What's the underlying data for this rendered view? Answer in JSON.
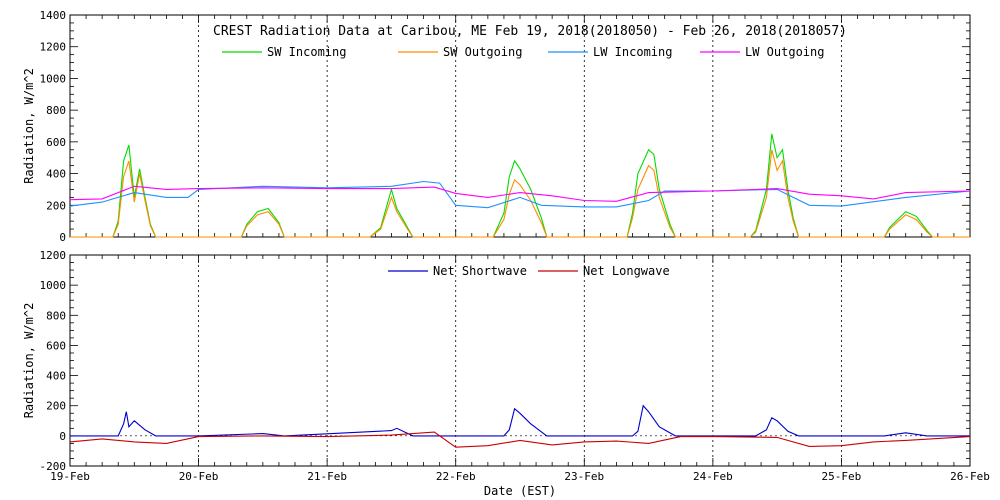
{
  "chart_data": [
    {
      "type": "line",
      "title": "CREST Radiation Data at Caribou, ME   Feb 19, 2018(2018050) - Feb 26, 2018(2018057)",
      "xlabel": "",
      "ylabel": "Radiation, W/m^2",
      "xlim": [
        "2018-02-19 00:00",
        "2018-02-26 00:00"
      ],
      "ylim": [
        0,
        1400
      ],
      "yticks": [
        0,
        200,
        400,
        600,
        800,
        1000,
        1200,
        1400
      ],
      "grid": true,
      "legend_position": "top",
      "series": [
        {
          "name": "SW Incoming",
          "color": "#00dd00",
          "x": [
            "2018-02-19 00:00",
            "2018-02-19 08:00",
            "2018-02-19 09:00",
            "2018-02-19 10:00",
            "2018-02-19 11:00",
            "2018-02-19 12:00",
            "2018-02-19 13:00",
            "2018-02-19 14:00",
            "2018-02-19 15:00",
            "2018-02-19 16:00",
            "2018-02-20 08:00",
            "2018-02-20 09:00",
            "2018-02-20 11:00",
            "2018-02-20 13:00",
            "2018-02-20 15:00",
            "2018-02-20 16:00",
            "2018-02-21 08:00",
            "2018-02-21 10:00",
            "2018-02-21 12:00",
            "2018-02-21 13:00",
            "2018-02-21 15:00",
            "2018-02-21 16:00",
            "2018-02-22 07:00",
            "2018-02-22 09:00",
            "2018-02-22 10:00",
            "2018-02-22 11:00",
            "2018-02-22 12:00",
            "2018-02-22 14:00",
            "2018-02-22 16:00",
            "2018-02-22 17:00",
            "2018-02-23 08:00",
            "2018-02-23 09:00",
            "2018-02-23 10:00",
            "2018-02-23 12:00",
            "2018-02-23 13:00",
            "2018-02-23 14:00",
            "2018-02-23 16:00",
            "2018-02-23 17:00",
            "2018-02-24 07:00",
            "2018-02-24 08:00",
            "2018-02-24 10:00",
            "2018-02-24 11:00",
            "2018-02-24 12:00",
            "2018-02-24 13:00",
            "2018-02-24 14:00",
            "2018-02-24 15:00",
            "2018-02-24 16:00",
            "2018-02-25 08:00",
            "2018-02-25 09:00",
            "2018-02-25 12:00",
            "2018-02-25 14:00",
            "2018-02-25 16:00",
            "2018-02-25 17:00",
            "2018-02-26 00:00"
          ],
          "values": [
            0,
            0,
            100,
            480,
            580,
            250,
            430,
            250,
            80,
            0,
            0,
            80,
            160,
            180,
            90,
            0,
            0,
            60,
            300,
            180,
            60,
            0,
            0,
            150,
            380,
            480,
            430,
            300,
            120,
            0,
            0,
            150,
            400,
            550,
            520,
            300,
            80,
            0,
            0,
            40,
            300,
            650,
            500,
            550,
            300,
            120,
            0,
            0,
            60,
            160,
            130,
            40,
            0,
            0
          ]
        },
        {
          "name": "SW Outgoing",
          "color": "#ff8c00",
          "x": [
            "2018-02-19 00:00",
            "2018-02-19 08:00",
            "2018-02-19 09:00",
            "2018-02-19 10:00",
            "2018-02-19 11:00",
            "2018-02-19 12:00",
            "2018-02-19 13:00",
            "2018-02-19 14:00",
            "2018-02-19 15:00",
            "2018-02-19 16:00",
            "2018-02-20 08:00",
            "2018-02-20 09:00",
            "2018-02-20 11:00",
            "2018-02-20 13:00",
            "2018-02-20 15:00",
            "2018-02-20 16:00",
            "2018-02-21 08:00",
            "2018-02-21 10:00",
            "2018-02-21 12:00",
            "2018-02-21 13:00",
            "2018-02-21 15:00",
            "2018-02-21 16:00",
            "2018-02-22 07:00",
            "2018-02-22 09:00",
            "2018-02-22 10:00",
            "2018-02-22 11:00",
            "2018-02-22 12:00",
            "2018-02-22 14:00",
            "2018-02-22 16:00",
            "2018-02-22 17:00",
            "2018-02-23 08:00",
            "2018-02-23 09:00",
            "2018-02-23 10:00",
            "2018-02-23 12:00",
            "2018-02-23 13:00",
            "2018-02-23 14:00",
            "2018-02-23 16:00",
            "2018-02-23 17:00",
            "2018-02-24 07:00",
            "2018-02-24 08:00",
            "2018-02-24 10:00",
            "2018-02-24 11:00",
            "2018-02-24 12:00",
            "2018-02-24 13:00",
            "2018-02-24 14:00",
            "2018-02-24 15:00",
            "2018-02-24 16:00",
            "2018-02-25 08:00",
            "2018-02-25 09:00",
            "2018-02-25 12:00",
            "2018-02-25 14:00",
            "2018-02-25 16:00",
            "2018-02-25 17:00",
            "2018-02-26 00:00"
          ],
          "values": [
            0,
            0,
            80,
            380,
            480,
            220,
            400,
            230,
            70,
            0,
            0,
            70,
            140,
            160,
            80,
            0,
            0,
            50,
            250,
            160,
            50,
            0,
            0,
            110,
            270,
            360,
            330,
            230,
            90,
            0,
            0,
            120,
            300,
            450,
            420,
            250,
            60,
            0,
            0,
            30,
            250,
            550,
            420,
            480,
            250,
            100,
            0,
            0,
            50,
            140,
            110,
            30,
            0,
            0
          ]
        },
        {
          "name": "LW Incoming",
          "color": "#1e90ff",
          "x": [
            "2018-02-19 00:00",
            "2018-02-19 06:00",
            "2018-02-19 12:00",
            "2018-02-19 18:00",
            "2018-02-19 22:00",
            "2018-02-20 00:00",
            "2018-02-20 12:00",
            "2018-02-21 00:00",
            "2018-02-21 12:00",
            "2018-02-21 18:00",
            "2018-02-21 21:00",
            "2018-02-22 00:00",
            "2018-02-22 06:00",
            "2018-02-22 12:00",
            "2018-02-22 16:00",
            "2018-02-23 00:00",
            "2018-02-23 06:00",
            "2018-02-23 12:00",
            "2018-02-23 15:00",
            "2018-02-24 00:00",
            "2018-02-24 12:00",
            "2018-02-24 18:00",
            "2018-02-25 00:00",
            "2018-02-25 12:00",
            "2018-02-26 00:00"
          ],
          "values": [
            195,
            220,
            280,
            250,
            250,
            300,
            320,
            310,
            320,
            350,
            340,
            200,
            185,
            250,
            200,
            190,
            190,
            230,
            290,
            290,
            300,
            200,
            195,
            250,
            290
          ]
        },
        {
          "name": "LW Outgoing",
          "color": "#ff00ff",
          "x": [
            "2018-02-19 00:00",
            "2018-02-19 06:00",
            "2018-02-19 12:00",
            "2018-02-19 18:00",
            "2018-02-20 00:00",
            "2018-02-20 12:00",
            "2018-02-21 00:00",
            "2018-02-21 12:00",
            "2018-02-21 20:00",
            "2018-02-22 00:00",
            "2018-02-22 06:00",
            "2018-02-22 12:00",
            "2018-02-22 18:00",
            "2018-02-23 00:00",
            "2018-02-23 06:00",
            "2018-02-23 12:00",
            "2018-02-23 18:00",
            "2018-02-24 00:00",
            "2018-02-24 12:00",
            "2018-02-24 18:00",
            "2018-02-25 00:00",
            "2018-02-25 06:00",
            "2018-02-25 12:00",
            "2018-02-26 00:00"
          ],
          "values": [
            235,
            240,
            320,
            300,
            305,
            310,
            305,
            305,
            315,
            275,
            250,
            280,
            260,
            230,
            225,
            280,
            285,
            290,
            305,
            270,
            260,
            240,
            280,
            290
          ]
        }
      ]
    },
    {
      "type": "line",
      "title": "",
      "xlabel": "Date (EST)",
      "ylabel": "Radiation, W/m^2",
      "xlim": [
        "2018-02-19 00:00",
        "2018-02-26 00:00"
      ],
      "ylim": [
        -200,
        1200
      ],
      "yticks": [
        -200,
        0,
        200,
        400,
        600,
        800,
        1000,
        1200
      ],
      "xticks": [
        "2018-02-19",
        "2018-02-20",
        "2018-02-21",
        "2018-02-22",
        "2018-02-23",
        "2018-02-24",
        "2018-02-25",
        "2018-02-26"
      ],
      "xticklabels": [
        "19-Feb",
        "20-Feb",
        "21-Feb",
        "22-Feb",
        "23-Feb",
        "24-Feb",
        "25-Feb",
        "26-Feb"
      ],
      "grid": true,
      "legend_position": "top",
      "series": [
        {
          "name": "Net Shortwave",
          "color": "#0000cc",
          "x": [
            "2018-02-19 00:00",
            "2018-02-19 09:00",
            "2018-02-19 10:00",
            "2018-02-19 10:30",
            "2018-02-19 11:00",
            "2018-02-19 12:00",
            "2018-02-19 14:00",
            "2018-02-19 16:00",
            "2018-02-20 00:00",
            "2018-02-20 12:00",
            "2018-02-20 16:00",
            "2018-02-21 12:00",
            "2018-02-21 13:00",
            "2018-02-21 16:00",
            "2018-02-22 09:00",
            "2018-02-22 10:00",
            "2018-02-22 11:00",
            "2018-02-22 12:00",
            "2018-02-22 14:00",
            "2018-02-22 17:00",
            "2018-02-23 09:00",
            "2018-02-23 10:00",
            "2018-02-23 11:00",
            "2018-02-23 12:00",
            "2018-02-23 14:00",
            "2018-02-23 17:00",
            "2018-02-24 08:00",
            "2018-02-24 10:00",
            "2018-02-24 11:00",
            "2018-02-24 12:00",
            "2018-02-24 14:00",
            "2018-02-24 16:00",
            "2018-02-25 08:00",
            "2018-02-25 12:00",
            "2018-02-25 16:00",
            "2018-02-26 00:00"
          ],
          "values": [
            0,
            0,
            80,
            160,
            60,
            100,
            40,
            0,
            0,
            15,
            0,
            35,
            50,
            0,
            0,
            40,
            180,
            150,
            80,
            0,
            0,
            30,
            200,
            160,
            60,
            0,
            0,
            40,
            120,
            100,
            30,
            0,
            0,
            20,
            0,
            0
          ]
        },
        {
          "name": "Net Longwave",
          "color": "#cc0000",
          "x": [
            "2018-02-19 00:00",
            "2018-02-19 06:00",
            "2018-02-19 12:00",
            "2018-02-19 18:00",
            "2018-02-20 00:00",
            "2018-02-20 12:00",
            "2018-02-21 00:00",
            "2018-02-21 12:00",
            "2018-02-21 20:00",
            "2018-02-22 00:00",
            "2018-02-22 06:00",
            "2018-02-22 12:00",
            "2018-02-22 18:00",
            "2018-02-23 00:00",
            "2018-02-23 06:00",
            "2018-02-23 12:00",
            "2018-02-23 18:00",
            "2018-02-24 00:00",
            "2018-02-24 12:00",
            "2018-02-24 18:00",
            "2018-02-25 00:00",
            "2018-02-25 06:00",
            "2018-02-25 12:00",
            "2018-02-26 00:00"
          ],
          "values": [
            -40,
            -20,
            -40,
            -50,
            -5,
            0,
            -5,
            5,
            25,
            -75,
            -65,
            -30,
            -60,
            -40,
            -35,
            -50,
            -5,
            -5,
            -10,
            -70,
            -65,
            -40,
            -30,
            -5
          ]
        }
      ]
    }
  ]
}
